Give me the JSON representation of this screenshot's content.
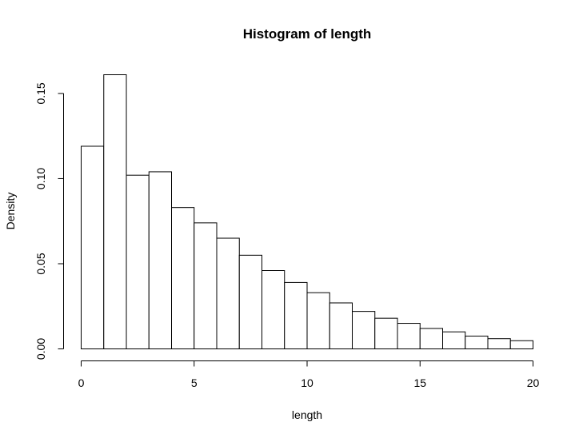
{
  "chart_data": {
    "type": "bar",
    "title": "Histogram of length",
    "xlabel": "length",
    "ylabel": "Density",
    "breaks": [
      0,
      1,
      2,
      3,
      4,
      5,
      6,
      7,
      8,
      9,
      10,
      11,
      12,
      13,
      14,
      15,
      16,
      17,
      18,
      19,
      20
    ],
    "values": [
      0.119,
      0.161,
      0.102,
      0.104,
      0.083,
      0.074,
      0.065,
      0.055,
      0.046,
      0.039,
      0.033,
      0.027,
      0.022,
      0.018,
      0.015,
      0.012,
      0.01,
      0.0075,
      0.006,
      0.0048
    ],
    "xlim": [
      0,
      20
    ],
    "ylim": [
      0,
      0.161
    ],
    "x_ticks": [
      0,
      5,
      10,
      15,
      20
    ],
    "x_tick_labels": [
      "0",
      "5",
      "10",
      "15",
      "20"
    ],
    "y_ticks": [
      0,
      0.05,
      0.1,
      0.15
    ],
    "y_tick_labels": [
      "0.00",
      "0.05",
      "0.10",
      "0.15"
    ],
    "grid": false,
    "fill_color": "#ffffff",
    "stroke_color": "#000000"
  }
}
